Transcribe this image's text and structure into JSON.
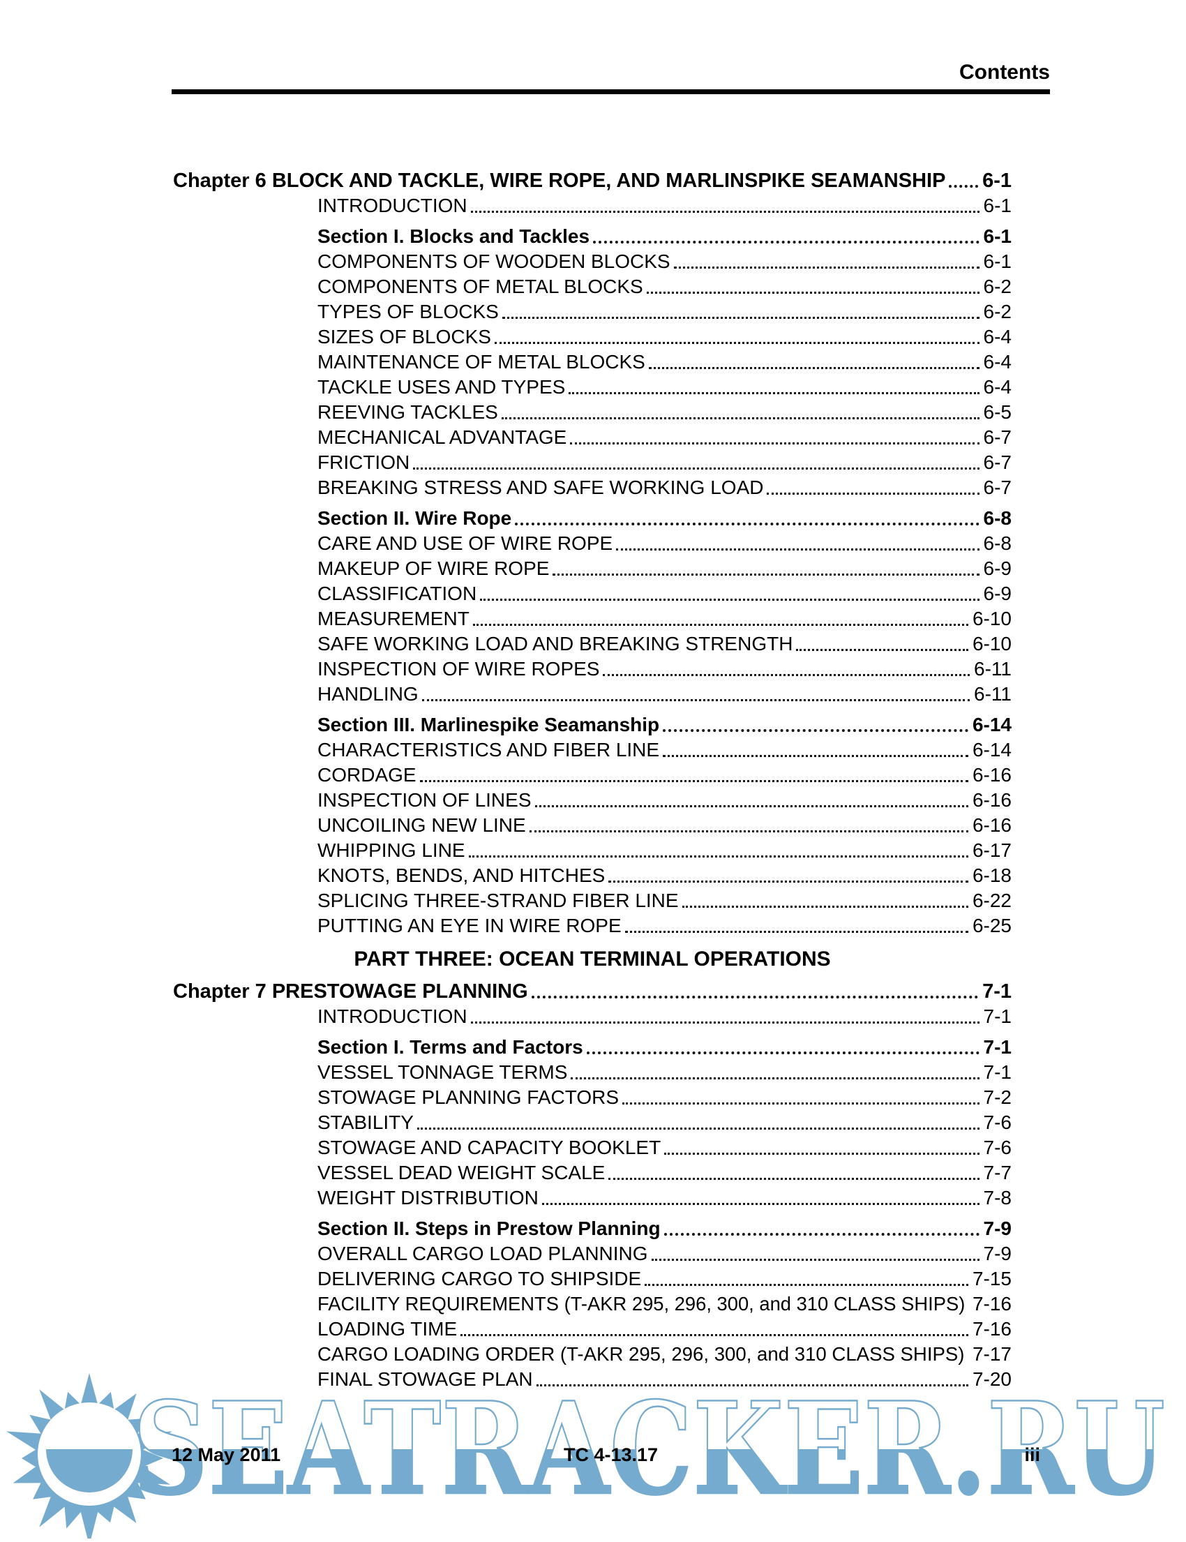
{
  "header": {
    "title": "Contents"
  },
  "toc": {
    "entries": [
      {
        "label": "Chapter 6 BLOCK AND TACKLE, WIRE ROPE, AND MARLINSPIKE SEAMANSHIP",
        "page": "6-1",
        "style": "chapter"
      },
      {
        "label": "INTRODUCTION",
        "page": "6-1",
        "style": "entry"
      },
      {
        "label": "Section I. Blocks and Tackles",
        "page": "6-1",
        "style": "section"
      },
      {
        "label": "COMPONENTS OF WOODEN BLOCKS",
        "page": "6-1",
        "style": "entry"
      },
      {
        "label": "COMPONENTS OF METAL BLOCKS",
        "page": "6-2",
        "style": "entry"
      },
      {
        "label": "TYPES OF BLOCKS",
        "page": "6-2",
        "style": "entry"
      },
      {
        "label": "SIZES OF BLOCKS",
        "page": "6-4",
        "style": "entry"
      },
      {
        "label": "MAINTENANCE OF METAL BLOCKS",
        "page": "6-4",
        "style": "entry"
      },
      {
        "label": "TACKLE USES AND TYPES",
        "page": "6-4",
        "style": "entry"
      },
      {
        "label": "REEVING TACKLES",
        "page": "6-5",
        "style": "entry"
      },
      {
        "label": "MECHANICAL ADVANTAGE",
        "page": "6-7",
        "style": "entry"
      },
      {
        "label": "FRICTION",
        "page": "6-7",
        "style": "entry"
      },
      {
        "label": "BREAKING STRESS AND SAFE WORKING LOAD",
        "page": "6-7",
        "style": "entry"
      },
      {
        "label": "Section II. Wire Rope",
        "page": "6-8",
        "style": "section"
      },
      {
        "label": "CARE AND USE OF WIRE ROPE",
        "page": "6-8",
        "style": "entry"
      },
      {
        "label": "MAKEUP OF WIRE ROPE",
        "page": "6-9",
        "style": "entry"
      },
      {
        "label": "CLASSIFICATION",
        "page": "6-9",
        "style": "entry"
      },
      {
        "label": "MEASUREMENT",
        "page": "6-10",
        "style": "entry"
      },
      {
        "label": "SAFE WORKING LOAD AND BREAKING STRENGTH",
        "page": "6-10",
        "style": "entry"
      },
      {
        "label": "INSPECTION OF WIRE ROPES",
        "page": "6-11",
        "style": "entry"
      },
      {
        "label": "HANDLING",
        "page": "6-11",
        "style": "entry"
      },
      {
        "label": "Section III. Marlinespike Seamanship",
        "page": "6-14",
        "style": "section"
      },
      {
        "label": "CHARACTERISTICS AND FIBER LINE",
        "page": "6-14",
        "style": "entry"
      },
      {
        "label": "CORDAGE",
        "page": "6-16",
        "style": "entry"
      },
      {
        "label": "INSPECTION OF LINES",
        "page": "6-16",
        "style": "entry"
      },
      {
        "label": "UNCOILING NEW LINE",
        "page": "6-16",
        "style": "entry"
      },
      {
        "label": "WHIPPING LINE",
        "page": "6-17",
        "style": "entry"
      },
      {
        "label": "KNOTS, BENDS, AND HITCHES",
        "page": "6-18",
        "style": "entry"
      },
      {
        "label": "SPLICING THREE-STRAND FIBER LINE",
        "page": "6-22",
        "style": "entry"
      },
      {
        "label": "PUTTING AN EYE IN WIRE ROPE",
        "page": "6-25",
        "style": "entry"
      },
      {
        "label": "PART THREE: OCEAN TERMINAL OPERATIONS",
        "page": "",
        "style": "part"
      },
      {
        "label": "Chapter 7 PRESTOWAGE PLANNING",
        "page": "7-1",
        "style": "chapter"
      },
      {
        "label": "INTRODUCTION",
        "page": "7-1",
        "style": "entry"
      },
      {
        "label": "Section I. Terms and Factors",
        "page": "7-1",
        "style": "section"
      },
      {
        "label": "VESSEL TONNAGE TERMS",
        "page": "7-1",
        "style": "entry"
      },
      {
        "label": "STOWAGE PLANNING FACTORS",
        "page": "7-2",
        "style": "entry"
      },
      {
        "label": "STABILITY",
        "page": "7-6",
        "style": "entry"
      },
      {
        "label": "STOWAGE AND CAPACITY BOOKLET",
        "page": "7-6",
        "style": "entry"
      },
      {
        "label": "VESSEL DEAD WEIGHT SCALE",
        "page": "7-7",
        "style": "entry"
      },
      {
        "label": "WEIGHT DISTRIBUTION",
        "page": "7-8",
        "style": "entry"
      },
      {
        "label": "Section II. Steps in Prestow Planning",
        "page": "7-9",
        "style": "section"
      },
      {
        "label": "OVERALL CARGO LOAD PLANNING",
        "page": "7-9",
        "style": "entry"
      },
      {
        "label": "DELIVERING CARGO TO SHIPSIDE",
        "page": "7-15",
        "style": "entry"
      },
      {
        "label": "FACILITY REQUIREMENTS (T-AKR 295, 296, 300, and 310 CLASS SHIPS)",
        "page": "7-16",
        "style": "entry",
        "dots": false
      },
      {
        "label": "LOADING TIME",
        "page": "7-16",
        "style": "entry"
      },
      {
        "label": "CARGO LOADING ORDER (T-AKR 295, 296, 300, and 310 CLASS SHIPS)",
        "page": "7-17",
        "style": "entry",
        "dots": false
      },
      {
        "label": "FINAL STOWAGE PLAN",
        "page": "7-20",
        "style": "entry"
      }
    ]
  },
  "footer": {
    "date": "12 May 2011",
    "doc_number": "TC 4-13.17",
    "page_number": "iii"
  },
  "watermark": {
    "text": "SEATRACKER.RU",
    "color": "#74abce"
  }
}
